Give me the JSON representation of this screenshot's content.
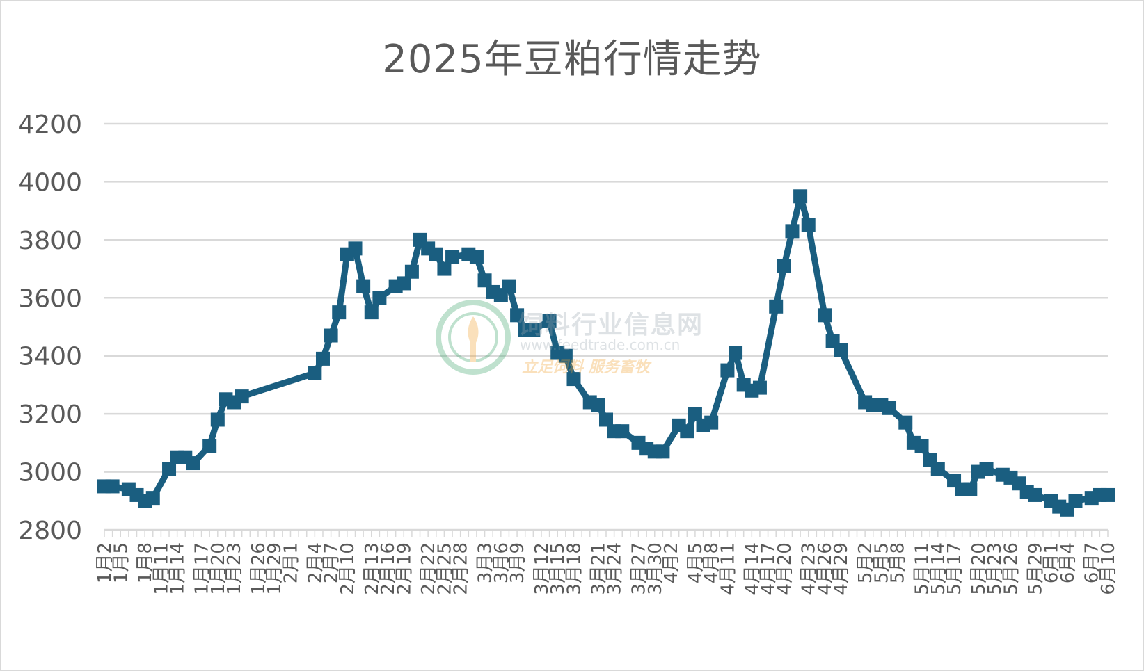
{
  "chart_data": {
    "type": "line",
    "title": "2025年豆粕行情走势",
    "ylim": [
      2800,
      4200
    ],
    "yticks": [
      2800,
      3000,
      3200,
      3400,
      3600,
      3800,
      4000,
      4200
    ],
    "grid": true,
    "legend": "none",
    "series": [
      {
        "color": "#1a5e80",
        "marker": "square",
        "points": [
          {
            "x": 0,
            "y": 2950
          },
          {
            "x": 1,
            "y": 2950
          },
          {
            "x": 3,
            "y": 2940
          },
          {
            "x": 4,
            "y": 2920
          },
          {
            "x": 5,
            "y": 2900
          },
          {
            "x": 6,
            "y": 2910
          },
          {
            "x": 8,
            "y": 3010
          },
          {
            "x": 9,
            "y": 3050
          },
          {
            "x": 10,
            "y": 3050
          },
          {
            "x": 11,
            "y": 3030
          },
          {
            "x": 13,
            "y": 3090
          },
          {
            "x": 14,
            "y": 3180
          },
          {
            "x": 15,
            "y": 3250
          },
          {
            "x": 16,
            "y": 3240
          },
          {
            "x": 17,
            "y": 3260
          },
          {
            "x": 26,
            "y": 3340
          },
          {
            "x": 27,
            "y": 3390
          },
          {
            "x": 28,
            "y": 3470
          },
          {
            "x": 29,
            "y": 3550
          },
          {
            "x": 30,
            "y": 3750
          },
          {
            "x": 31,
            "y": 3770
          },
          {
            "x": 32,
            "y": 3640
          },
          {
            "x": 33,
            "y": 3550
          },
          {
            "x": 34,
            "y": 3600
          },
          {
            "x": 36,
            "y": 3640
          },
          {
            "x": 37,
            "y": 3650
          },
          {
            "x": 38,
            "y": 3690
          },
          {
            "x": 39,
            "y": 3800
          },
          {
            "x": 40,
            "y": 3770
          },
          {
            "x": 41,
            "y": 3750
          },
          {
            "x": 42,
            "y": 3700
          },
          {
            "x": 43,
            "y": 3740
          },
          {
            "x": 45,
            "y": 3750
          },
          {
            "x": 46,
            "y": 3740
          },
          {
            "x": 47,
            "y": 3660
          },
          {
            "x": 48,
            "y": 3620
          },
          {
            "x": 49,
            "y": 3610
          },
          {
            "x": 50,
            "y": 3640
          },
          {
            "x": 51,
            "y": 3540
          },
          {
            "x": 52,
            "y": 3490
          },
          {
            "x": 53,
            "y": 3490
          },
          {
            "x": 55,
            "y": 3520
          },
          {
            "x": 56,
            "y": 3410
          },
          {
            "x": 57,
            "y": 3400
          },
          {
            "x": 58,
            "y": 3320
          },
          {
            "x": 60,
            "y": 3240
          },
          {
            "x": 61,
            "y": 3230
          },
          {
            "x": 62,
            "y": 3180
          },
          {
            "x": 63,
            "y": 3140
          },
          {
            "x": 64,
            "y": 3140
          },
          {
            "x": 66,
            "y": 3100
          },
          {
            "x": 67,
            "y": 3080
          },
          {
            "x": 68,
            "y": 3070
          },
          {
            "x": 69,
            "y": 3070
          },
          {
            "x": 71,
            "y": 3160
          },
          {
            "x": 72,
            "y": 3140
          },
          {
            "x": 73,
            "y": 3200
          },
          {
            "x": 74,
            "y": 3160
          },
          {
            "x": 75,
            "y": 3170
          },
          {
            "x": 77,
            "y": 3350
          },
          {
            "x": 78,
            "y": 3410
          },
          {
            "x": 79,
            "y": 3300
          },
          {
            "x": 80,
            "y": 3280
          },
          {
            "x": 81,
            "y": 3290
          },
          {
            "x": 83,
            "y": 3570
          },
          {
            "x": 84,
            "y": 3710
          },
          {
            "x": 85,
            "y": 3830
          },
          {
            "x": 86,
            "y": 3950
          },
          {
            "x": 87,
            "y": 3850
          },
          {
            "x": 89,
            "y": 3540
          },
          {
            "x": 90,
            "y": 3450
          },
          {
            "x": 91,
            "y": 3420
          },
          {
            "x": 94,
            "y": 3240
          },
          {
            "x": 95,
            "y": 3230
          },
          {
            "x": 96,
            "y": 3230
          },
          {
            "x": 97,
            "y": 3220
          },
          {
            "x": 99,
            "y": 3170
          },
          {
            "x": 100,
            "y": 3100
          },
          {
            "x": 101,
            "y": 3090
          },
          {
            "x": 102,
            "y": 3040
          },
          {
            "x": 103,
            "y": 3010
          },
          {
            "x": 105,
            "y": 2970
          },
          {
            "x": 106,
            "y": 2940
          },
          {
            "x": 107,
            "y": 2940
          },
          {
            "x": 108,
            "y": 3000
          },
          {
            "x": 109,
            "y": 3010
          },
          {
            "x": 111,
            "y": 2990
          },
          {
            "x": 112,
            "y": 2980
          },
          {
            "x": 113,
            "y": 2960
          },
          {
            "x": 114,
            "y": 2930
          },
          {
            "x": 115,
            "y": 2920
          },
          {
            "x": 117,
            "y": 2900
          },
          {
            "x": 118,
            "y": 2880
          },
          {
            "x": 119,
            "y": 2870
          },
          {
            "x": 120,
            "y": 2900
          },
          {
            "x": 122,
            "y": 2910
          },
          {
            "x": 123,
            "y": 2920
          },
          {
            "x": 124,
            "y": 2920
          }
        ]
      }
    ],
    "x_category_count": 125,
    "x_tick_labels": [
      {
        "i": 1,
        "label": "1月2"
      },
      {
        "i": 2,
        "label": "1月5"
      },
      {
        "i": 3,
        "label": "1月8"
      },
      {
        "i": 4,
        "label": "1月11"
      },
      {
        "i": 5,
        "label": "1月14"
      },
      {
        "i": 6,
        "label": "1月17"
      },
      {
        "i": 7,
        "label": "1月20"
      },
      {
        "i": 8,
        "label": "1月23"
      },
      {
        "i": 9,
        "label": "1月26"
      },
      {
        "i": 10,
        "label": "1月29"
      },
      {
        "i": 11,
        "label": "2月1"
      },
      {
        "i": 12,
        "label": "2月4"
      },
      {
        "i": 13,
        "label": "2月7"
      },
      {
        "i": 14,
        "label": "2月10"
      },
      {
        "i": 15,
        "label": "2月13"
      },
      {
        "i": 16,
        "label": "2月16"
      },
      {
        "i": 17,
        "label": "2月19"
      },
      {
        "i": 18,
        "label": "2月22"
      },
      {
        "i": 19,
        "label": "2月25"
      },
      {
        "i": 20,
        "label": "2月28"
      },
      {
        "i": 21,
        "label": "3月3"
      },
      {
        "i": 22,
        "label": "3月6"
      },
      {
        "i": 23,
        "label": "3月9"
      },
      {
        "i": 24,
        "label": "3月12"
      },
      {
        "i": 25,
        "label": "3月15"
      },
      {
        "i": 26,
        "label": "3月18"
      },
      {
        "i": 27,
        "label": "3月21"
      },
      {
        "i": 28,
        "label": "3月24"
      },
      {
        "i": 29,
        "label": "3月27"
      },
      {
        "i": 30,
        "label": "3月30"
      },
      {
        "i": 31,
        "label": "4月2"
      },
      {
        "i": 32,
        "label": "4月5"
      },
      {
        "i": 33,
        "label": "4月8"
      },
      {
        "i": 34,
        "label": "4月11"
      },
      {
        "i": 35,
        "label": "4月14"
      },
      {
        "i": 36,
        "label": "4月17"
      },
      {
        "i": 37,
        "label": "4月20"
      },
      {
        "i": 38,
        "label": "4月23"
      },
      {
        "i": 39,
        "label": "4月26"
      },
      {
        "i": 40,
        "label": "4月29"
      },
      {
        "i": 41,
        "label": "5月2"
      },
      {
        "i": 42,
        "label": "5月5"
      },
      {
        "i": 43,
        "label": "5月8"
      },
      {
        "i": 44,
        "label": "5月11"
      },
      {
        "i": 45,
        "label": "5月14"
      },
      {
        "i": 46,
        "label": "5月17"
      },
      {
        "i": 47,
        "label": "5月20"
      },
      {
        "i": 48,
        "label": "5月23"
      },
      {
        "i": 49,
        "label": "5月26"
      },
      {
        "i": 50,
        "label": "5月29"
      },
      {
        "i": 51,
        "label": "6月1"
      },
      {
        "i": 52,
        "label": "6月4"
      },
      {
        "i": 53,
        "label": "6月7"
      },
      {
        "i": 54,
        "label": "6月10"
      }
    ]
  },
  "watermark": {
    "name_cn": "饲料行业信息网",
    "url": "www.feedtrade.com.cn",
    "slogan": "立足饲料  服务畜牧"
  }
}
